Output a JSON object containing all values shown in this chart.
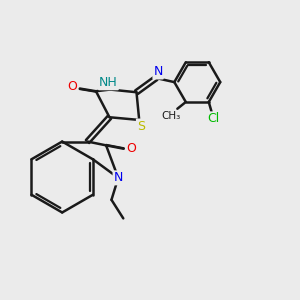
{
  "bg_color": "#ebebeb",
  "bond_color": "#1a1a1a",
  "bond_width": 1.8,
  "atom_colors": {
    "N": "#0000ee",
    "O": "#ee0000",
    "S": "#bbbb00",
    "Cl": "#00bb00",
    "NH": "#008888",
    "C": "#1a1a1a"
  }
}
